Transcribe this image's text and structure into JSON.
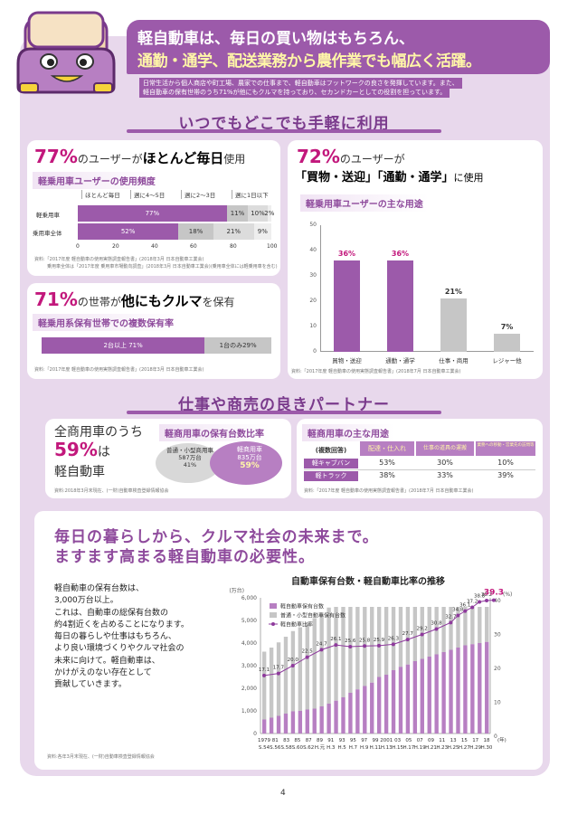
{
  "header": {
    "line1": "軽自動車は、毎日の買い物はもちろん、",
    "line2": "通勤・通学、配送業務から農作業でも幅広く活躍。",
    "desc1": "日常生活から個人商店や町工場、農家での仕事まで、軽自動車はフットワークの良さを発揮しています。また、",
    "desc2": "軽自動車の保有世帯のうち71%が他にもクルマを持っており、セカンドカーとしての役割を担っています。"
  },
  "section1": {
    "title": "いつでもどこでも手軽に利用",
    "usage": {
      "pct": "77%",
      "headline_mid": "のユーザーが",
      "headline_bold": "ほとんど毎日",
      "headline_end": "使用",
      "subhead": "軽乗用車ユーザーの使用頻度",
      "col_headers": [
        "ほとんど毎日",
        "週に4～5日",
        "週に2～3日",
        "週に1日以下"
      ],
      "rows": [
        {
          "label": "軽乗用車",
          "values": [
            77,
            11,
            10,
            2
          ],
          "labels": [
            "77%",
            "11%",
            "10%",
            "2%"
          ]
        },
        {
          "label": "乗用車全体",
          "values": [
            52,
            18,
            21,
            9
          ],
          "labels": [
            "52%",
            "18%",
            "21%",
            "9%"
          ]
        }
      ],
      "ticks": [
        "0",
        "20",
        "40",
        "60",
        "80",
        "100"
      ],
      "note1": "資料:「2017年度 軽自動車の使用実態調査報告書」(2018年3月 日本自動車工業会)",
      "note2": "乗用車全体は「2017年度 乗用車市場動向調査」(2018年3月 日本自動車工業会)(乗用車全体には軽乗用車を含む)"
    },
    "ownership": {
      "pct": "71%",
      "headline_mid": "の世帯が",
      "headline_bold": "他にもクルマ",
      "headline_end": "を保有",
      "subhead": "軽乗用系保有世帯での複数保有率",
      "bar_main_label": "2台以上 71%",
      "bar_rest_label": "1台のみ29%",
      "value": 71,
      "note": "資料:「2017年度 軽自動車の使用実態調査報告書」(2018年3月 日本自動車工業会)"
    },
    "purpose": {
      "pct": "72%",
      "headline_mid": "のユーザーが",
      "headline2": "「買物・送迎」「通勤・通学」",
      "headline2_end": "に使用",
      "subhead": "軽乗用車ユーザーの主な用途",
      "chart_data": {
        "type": "bar",
        "categories": [
          "買物・送迎",
          "通勤・通学",
          "仕事・商用",
          "レジャー他"
        ],
        "values": [
          36,
          36,
          21,
          7
        ],
        "value_labels": [
          "36%",
          "36%",
          "21%",
          "7%"
        ],
        "ylim": [
          0,
          50
        ],
        "yticks": [
          "50",
          "40",
          "30",
          "20",
          "10",
          "0"
        ]
      },
      "note": "資料:「2017年度 軽自動車の使用実態調査報告書」(2018年7月 日本自動車工業会)"
    }
  },
  "section2": {
    "title": "仕事や商売の良きパートナー",
    "share": {
      "line1": "全商用車のうち",
      "pct": "59%",
      "pct_suffix": "は",
      "line3": "軽自動車",
      "subhead": "軽商用車の保有台数比率",
      "ellipse1": [
        "普通・小型商用車",
        "587万台",
        "41%"
      ],
      "ellipse2": [
        "軽商用車",
        "835万台",
        "59%"
      ],
      "note": "資料:2018年3月末現在、(一財)自動車検査登録情報協会"
    },
    "commercial": {
      "subhead": "軽商用車の主な用途",
      "corner": "(複数回答)",
      "col_headers": [
        "配達・仕入れ",
        "仕事の道具の運搬",
        "業務への移動・営業先の訪問等"
      ],
      "rows": [
        {
          "label": "軽キャブバン",
          "values": [
            "53%",
            "30%",
            "10%"
          ]
        },
        {
          "label": "軽トラック",
          "values": [
            "38%",
            "33%",
            "39%"
          ]
        }
      ],
      "note": "資料:「2017年度 軽自動車の使用実態調査報告書」(2018年7月 日本自動車工業会)"
    }
  },
  "section3": {
    "headline1": "毎日の暮らしから、クルマ社会の未来まで。",
    "headline2": "ますます高まる軽自動車の必要性。",
    "body": [
      "軽自動車の保有台数は、",
      "3,000万台以上。",
      "これは、自動車の総保有台数の",
      "約4割近くを占めることになります。",
      "毎日の暮らしや仕事はもちろん、",
      "より良い環境づくりやクルマ社会の",
      "未来に向けて。軽自動車は、",
      "かけがえのない存在として",
      "貢献していきます。"
    ],
    "note": "資料:各年3月末現在、(一財)自動車検査登録情報協会",
    "chart_data": {
      "type": "bar",
      "title": "自動車保有台数・軽自動車比率の推移",
      "ylabel_left": "(万台)",
      "ylabel_right": "(%)",
      "xlabel": "(年)",
      "yticks_left": [
        "6,000",
        "5,000",
        "4,000",
        "3,000",
        "2,000",
        "1,000",
        "0"
      ],
      "yticks_right": [
        "40",
        "30",
        "20",
        "10",
        "0"
      ],
      "legend": [
        "軽自動車保有台数",
        "普通・小型自動車保有台数",
        "軽自動車比率"
      ],
      "colors": {
        "kei": "#b77fc2",
        "regular": "#c6c6c6",
        "ratio": "#8e3a9c",
        "label": "#c2187c"
      },
      "x_top": [
        "1979",
        "81",
        "83",
        "85",
        "87",
        "89",
        "91",
        "93",
        "95",
        "97",
        "99",
        "2001",
        "03",
        "05",
        "07",
        "09",
        "11",
        "13",
        "15",
        "17",
        "18"
      ],
      "x_bottom": [
        "S.54",
        "S.56",
        "S.58",
        "S.60",
        "S.62",
        "H.元",
        "H.3",
        "H.5",
        "H.7",
        "H.9",
        "H.11",
        "H.13",
        "H.15",
        "H.17",
        "H.19",
        "H.21",
        "H.23",
        "H.25",
        "H.27",
        "H.29",
        "H.30"
      ],
      "kei": [
        620,
        700,
        780,
        880,
        980,
        1000,
        1060,
        1100,
        1200,
        1320,
        1450,
        1600,
        1800,
        1950,
        2100,
        2250,
        2500,
        2600,
        2800,
        2950,
        3050,
        3200,
        3300,
        3400,
        3500,
        3600,
        3700,
        3800,
        3900,
        3950,
        4000,
        4050
      ],
      "regular": [
        3000,
        3100,
        3250,
        3400,
        3550,
        3700,
        3850,
        4000,
        4100,
        4250,
        4400,
        4500,
        4550,
        4600,
        4700,
        4750,
        4800,
        4850,
        4900,
        4900,
        4850,
        4800,
        4800,
        4800,
        4780,
        4750,
        4700,
        4700,
        4650,
        4600,
        4600,
        4600
      ],
      "ratio_points": [
        {
          "x": 0,
          "v": 17.1,
          "label": "17.1"
        },
        {
          "x": 2,
          "v": 17.7,
          "label": "17.7"
        },
        {
          "x": 4,
          "v": 20.0,
          "label": "20.0"
        },
        {
          "x": 6,
          "v": 22.5,
          "label": "22.5"
        },
        {
          "x": 8,
          "v": 24.7,
          "label": "24.7"
        },
        {
          "x": 10,
          "v": 26.1,
          "label": "26.1"
        },
        {
          "x": 12,
          "v": 25.6,
          "label": "25.6"
        },
        {
          "x": 14,
          "v": 25.8,
          "label": "25.8"
        },
        {
          "x": 16,
          "v": 25.9,
          "label": "25.9"
        },
        {
          "x": 18,
          "v": 26.3,
          "label": "26.3"
        },
        {
          "x": 20,
          "v": 27.7,
          "label": "27.7"
        },
        {
          "x": 22,
          "v": 29.2,
          "label": "29.2"
        },
        {
          "x": 24,
          "v": 30.8,
          "label": "30.8"
        },
        {
          "x": 26,
          "v": 32.7,
          "label": "32.7"
        },
        {
          "x": 27,
          "v": 34.8,
          "label": "34.8"
        },
        {
          "x": 28,
          "v": 36.1,
          "label": "36.1"
        },
        {
          "x": 29,
          "v": 37.2,
          "label": "37.2"
        },
        {
          "x": 30,
          "v": 38.8,
          "label": "38.8"
        },
        {
          "x": 31,
          "v": 39.2,
          "label": "39.2"
        },
        {
          "x": 32,
          "v": 39.3,
          "label": "39.3"
        }
      ],
      "ylim_left": [
        0,
        6000
      ],
      "ylim_right": [
        0,
        40
      ]
    }
  },
  "page_number": "4"
}
